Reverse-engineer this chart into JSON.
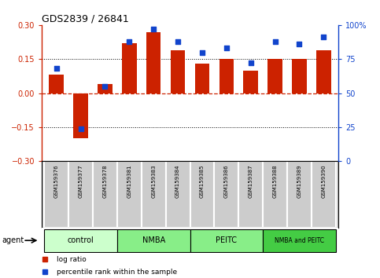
{
  "title": "GDS2839 / 26841",
  "samples": [
    "GSM159376",
    "GSM159377",
    "GSM159378",
    "GSM159381",
    "GSM159383",
    "GSM159384",
    "GSM159385",
    "GSM159386",
    "GSM159387",
    "GSM159388",
    "GSM159389",
    "GSM159390"
  ],
  "log_ratio": [
    0.08,
    -0.2,
    0.04,
    0.22,
    0.27,
    0.19,
    0.13,
    0.15,
    0.1,
    0.15,
    0.15,
    0.19
  ],
  "percentile": [
    68,
    24,
    55,
    88,
    97,
    88,
    80,
    83,
    72,
    88,
    86,
    91
  ],
  "bar_color": "#cc2200",
  "dot_color": "#1144cc",
  "ylim_left": [
    -0.3,
    0.3
  ],
  "ylim_right": [
    0,
    100
  ],
  "yticks_left": [
    -0.3,
    -0.15,
    0,
    0.15,
    0.3
  ],
  "yticks_right": [
    0,
    25,
    50,
    75,
    100
  ],
  "hline_zero_color": "#cc2200",
  "hline_dotted_color": "#000000",
  "groups": [
    {
      "label": "control",
      "start": 0,
      "end": 3,
      "color": "#ccffcc"
    },
    {
      "label": "NMBA",
      "start": 3,
      "end": 6,
      "color": "#88ee88"
    },
    {
      "label": "PEITC",
      "start": 6,
      "end": 9,
      "color": "#88ee88"
    },
    {
      "label": "NMBA and PEITC",
      "start": 9,
      "end": 12,
      "color": "#44cc44"
    }
  ],
  "agent_label": "agent",
  "legend_bar_label": "log ratio",
  "legend_dot_label": "percentile rank within the sample",
  "background_color": "#ffffff",
  "plot_bg_color": "#ffffff",
  "label_bg_color": "#cccccc"
}
